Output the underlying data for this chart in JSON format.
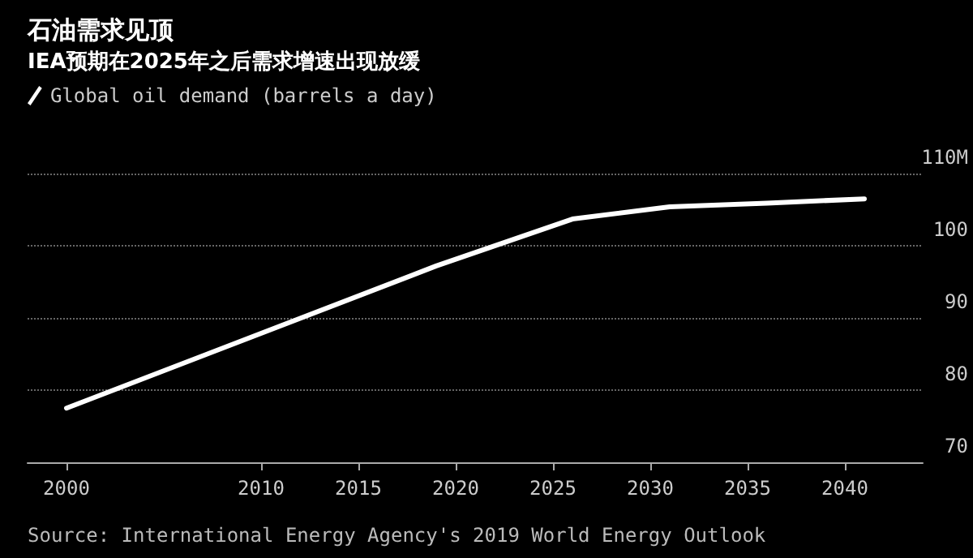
{
  "chart_data": {
    "type": "line",
    "title": "石油需求见顶",
    "subtitle": "IEA预期在2025年之后需求增速出现放缓",
    "x": [
      2000,
      2019,
      2026,
      2031,
      2036,
      2041
    ],
    "series": [
      {
        "name": "Global oil demand (barrels a day)",
        "color": "#ffffff",
        "values": [
          77.5,
          97.2,
          103.7,
          105.4,
          105.9,
          106.5
        ]
      }
    ],
    "xlim": [
      1998,
      2044
    ],
    "xticks": [
      2000,
      2010,
      2015,
      2020,
      2025,
      2030,
      2035,
      2040
    ],
    "ylim": [
      70,
      110
    ],
    "yticks": [
      70,
      80,
      90,
      100,
      {
        "value": 110,
        "label": "110M"
      }
    ],
    "grid": "y",
    "legend": "top left",
    "marker": "none",
    "line_style": "solid",
    "annotations": [
      "Source: International Energy Agency's 2019 World Energy Outlook"
    ]
  }
}
